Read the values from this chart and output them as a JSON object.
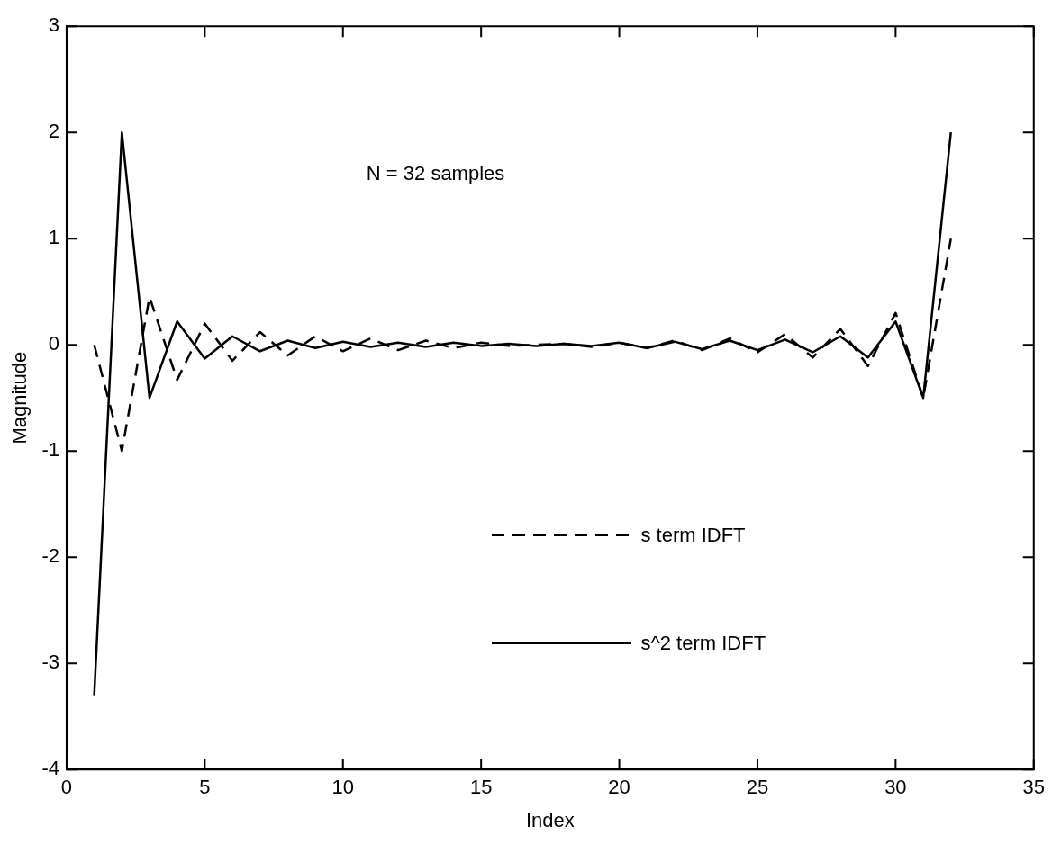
{
  "chart_data": {
    "type": "line",
    "xlabel": "Index",
    "ylabel": "Magnitude",
    "annotations": [
      "N = 32 samples"
    ],
    "x": [
      1,
      2,
      3,
      4,
      5,
      6,
      7,
      8,
      9,
      10,
      11,
      12,
      13,
      14,
      15,
      16,
      17,
      18,
      19,
      20,
      21,
      22,
      23,
      24,
      25,
      26,
      27,
      28,
      29,
      30,
      31,
      32
    ],
    "xlim": [
      0,
      35
    ],
    "xticks": [
      0,
      5,
      10,
      15,
      20,
      25,
      30,
      35
    ],
    "ylim": [
      -4,
      3
    ],
    "yticks": [
      -4,
      -3,
      -2,
      -1,
      0,
      1,
      2,
      3
    ],
    "grid": false,
    "legend": "bottom",
    "marker": "none",
    "series": [
      {
        "name": "s term IDFT",
        "color": "#000000",
        "line_style": "dashed",
        "values": [
          0,
          -1.0,
          0.45,
          -0.33,
          0.2,
          -0.15,
          0.12,
          -0.1,
          0.08,
          -0.06,
          0.06,
          -0.05,
          0.04,
          -0.03,
          0.02,
          -0.01,
          0.0,
          0.01,
          -0.02,
          0.02,
          -0.03,
          0.04,
          -0.05,
          0.06,
          -0.07,
          0.1,
          -0.12,
          0.15,
          -0.2,
          0.3,
          -0.5,
          1.0
        ]
      },
      {
        "name": "s^2 term IDFT",
        "color": "#000000",
        "line_style": "solid",
        "values": [
          -3.3,
          2.0,
          -0.5,
          0.22,
          -0.13,
          0.08,
          -0.06,
          0.04,
          -0.03,
          0.03,
          -0.02,
          0.02,
          -0.02,
          0.02,
          -0.01,
          0.01,
          -0.01,
          0.01,
          -0.01,
          0.02,
          -0.03,
          0.03,
          -0.04,
          0.04,
          -0.05,
          0.05,
          -0.07,
          0.08,
          -0.12,
          0.22,
          -0.5,
          2.0
        ]
      }
    ]
  }
}
